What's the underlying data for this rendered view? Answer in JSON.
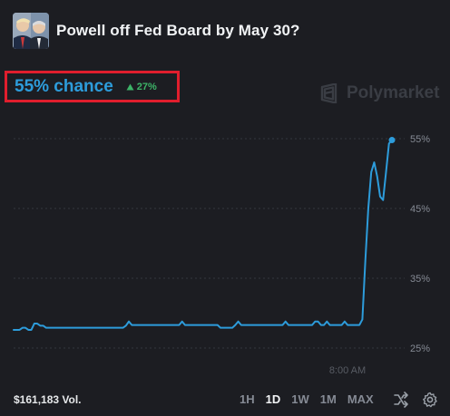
{
  "market": {
    "title": "Powell off Fed Board by May 30?",
    "image_icon": "market-portrait-icon"
  },
  "odds": {
    "chance_text": "55% chance",
    "delta_text": "27%",
    "delta_direction": "up",
    "delta_color": "#3db468",
    "chance_color": "#2d9cdb"
  },
  "brand": {
    "watermark": "Polymarket",
    "icon": "polymarket-logo-icon"
  },
  "footer": {
    "volume": "$161,183 Vol.",
    "ranges": [
      "1H",
      "1D",
      "1W",
      "1M",
      "MAX"
    ],
    "active_range": "1D",
    "icons": [
      "shuffle-icon",
      "gear-icon"
    ]
  },
  "chart_data": {
    "type": "line",
    "color": "#2d9cdb",
    "x_tick_labels": [
      "8:00 AM"
    ],
    "y_tick_labels": [
      "55%",
      "45%",
      "35%",
      "25%"
    ],
    "y_ticks": [
      55,
      45,
      35,
      25
    ],
    "ylim": [
      25,
      55
    ],
    "grid": "horizontal-dashed",
    "series": [
      {
        "values": [
          27.6,
          27.6,
          27.6,
          27.9,
          27.9,
          27.6,
          27.6,
          28.5,
          28.5,
          28.2,
          28.2,
          27.9,
          27.9,
          27.9,
          27.9,
          27.9,
          27.9,
          27.9,
          27.9,
          27.9,
          27.9,
          27.9,
          27.9,
          27.9,
          27.9,
          27.9,
          27.9,
          27.9,
          27.9,
          27.9,
          27.9,
          27.9,
          27.9,
          27.9,
          27.9,
          27.9,
          27.9,
          27.9,
          28.2,
          28.8,
          28.3,
          28.3,
          28.3,
          28.3,
          28.3,
          28.3,
          28.3,
          28.3,
          28.3,
          28.3,
          28.3,
          28.3,
          28.3,
          28.3,
          28.3,
          28.3,
          28.3,
          28.8,
          28.3,
          28.3,
          28.3,
          28.3,
          28.3,
          28.3,
          28.3,
          28.3,
          28.3,
          28.3,
          28.3,
          28.3,
          27.9,
          27.9,
          27.9,
          27.9,
          27.9,
          28.3,
          28.8,
          28.3,
          28.3,
          28.3,
          28.3,
          28.3,
          28.3,
          28.3,
          28.3,
          28.3,
          28.3,
          28.3,
          28.3,
          28.3,
          28.3,
          28.3,
          28.8,
          28.3,
          28.3,
          28.3,
          28.3,
          28.3,
          28.3,
          28.3,
          28.3,
          28.3,
          28.8,
          28.8,
          28.3,
          28.3,
          28.8,
          28.3,
          28.3,
          28.3,
          28.3,
          28.3,
          28.8,
          28.3,
          28.3,
          28.3,
          28.3,
          28.3,
          29.1,
          37.5,
          45,
          50.2,
          51.6,
          49.6,
          46.7,
          46.2,
          50.2,
          54.3,
          54.8
        ],
        "x_span": "midnight to after 8:00 AM (one day)"
      }
    ],
    "last_point_label": "55%"
  }
}
